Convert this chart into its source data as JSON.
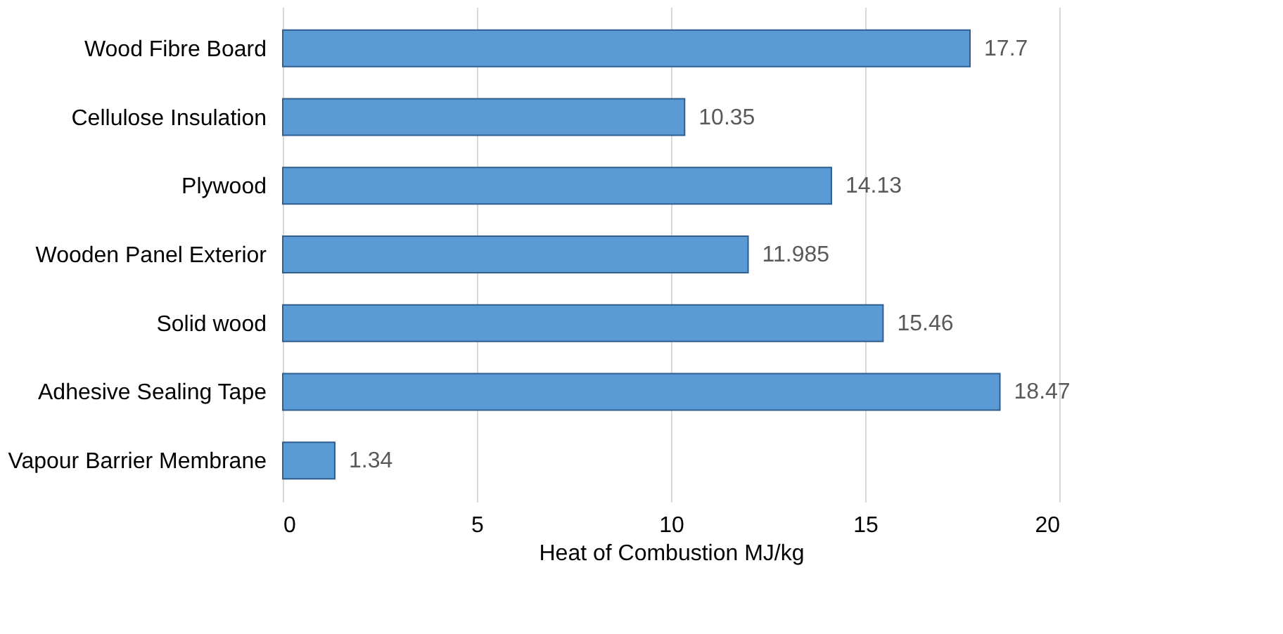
{
  "chart_data": {
    "type": "bar",
    "orientation": "horizontal",
    "xlabel": "Heat of Combustion MJ/kg",
    "categories": [
      "Wood Fibre Board",
      "Cellulose Insulation",
      "Plywood",
      "Wooden Panel Exterior",
      "Solid wood",
      "Adhesive Sealing Tape",
      "Vapour Barrier Membrane"
    ],
    "values": [
      17.7,
      10.35,
      14.13,
      11.985,
      15.46,
      18.47,
      1.34
    ],
    "color": "#5b9bd5",
    "xlim": [
      0,
      20
    ],
    "xticks": [
      0,
      5,
      10,
      15,
      20
    ],
    "grid": "x",
    "data_labels": true
  }
}
